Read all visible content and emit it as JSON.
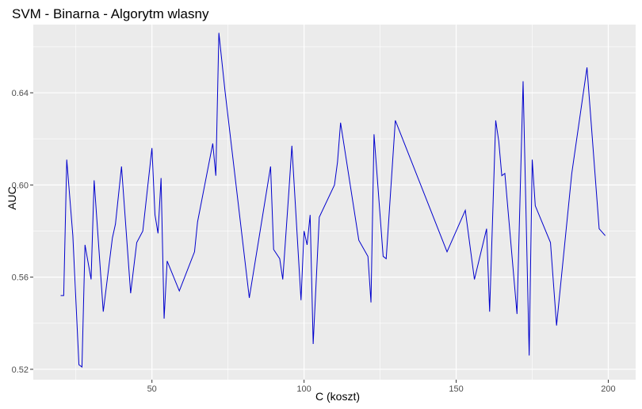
{
  "chart_data": {
    "type": "line",
    "title": "SVM - Binarna - Algorytm wlasny",
    "xlabel": "C (koszt)",
    "ylabel": "AUC",
    "xlim": [
      11,
      209
    ],
    "ylim": [
      0.5155,
      0.6696
    ],
    "x_ticks": [
      50,
      100,
      150,
      200
    ],
    "x_tick_labels": [
      "50",
      "100",
      "150",
      "200"
    ],
    "y_ticks": [
      0.52,
      0.56,
      0.6,
      0.64
    ],
    "y_tick_labels": [
      "0.52",
      "0.56",
      "0.60",
      "0.64"
    ],
    "grid": true,
    "background": "#ebebeb",
    "grid_color": "#ffffff",
    "series": [
      {
        "color": "#0000cd",
        "x": [
          20,
          21,
          22,
          24,
          26,
          27,
          28,
          30,
          31,
          34,
          37,
          38,
          40,
          43,
          45,
          47,
          50,
          51,
          52,
          53,
          54,
          55,
          59,
          64,
          65,
          70,
          71,
          72,
          74,
          82,
          89,
          90,
          92,
          93,
          95,
          96,
          99,
          100,
          101,
          102,
          103,
          105,
          110,
          111,
          112,
          118,
          121,
          122,
          123,
          126,
          127,
          130,
          147,
          153,
          156,
          160,
          161,
          163,
          164,
          165,
          166,
          170,
          172,
          174,
          175,
          176,
          181,
          183,
          188,
          193,
          197,
          199
        ],
        "y": [
          0.552,
          0.552,
          0.611,
          0.578,
          0.522,
          0.521,
          0.574,
          0.559,
          0.602,
          0.545,
          0.577,
          0.583,
          0.608,
          0.553,
          0.575,
          0.58,
          0.616,
          0.587,
          0.579,
          0.603,
          0.542,
          0.567,
          0.554,
          0.571,
          0.584,
          0.618,
          0.604,
          0.666,
          0.641,
          0.551,
          0.608,
          0.572,
          0.568,
          0.559,
          0.597,
          0.617,
          0.55,
          0.58,
          0.574,
          0.587,
          0.531,
          0.586,
          0.6,
          0.61,
          0.627,
          0.576,
          0.569,
          0.549,
          0.622,
          0.569,
          0.568,
          0.628,
          0.571,
          0.589,
          0.559,
          0.581,
          0.545,
          0.628,
          0.619,
          0.604,
          0.605,
          0.544,
          0.645,
          0.526,
          0.611,
          0.591,
          0.575,
          0.539,
          0.605,
          0.651,
          0.581,
          0.578
        ]
      }
    ]
  }
}
